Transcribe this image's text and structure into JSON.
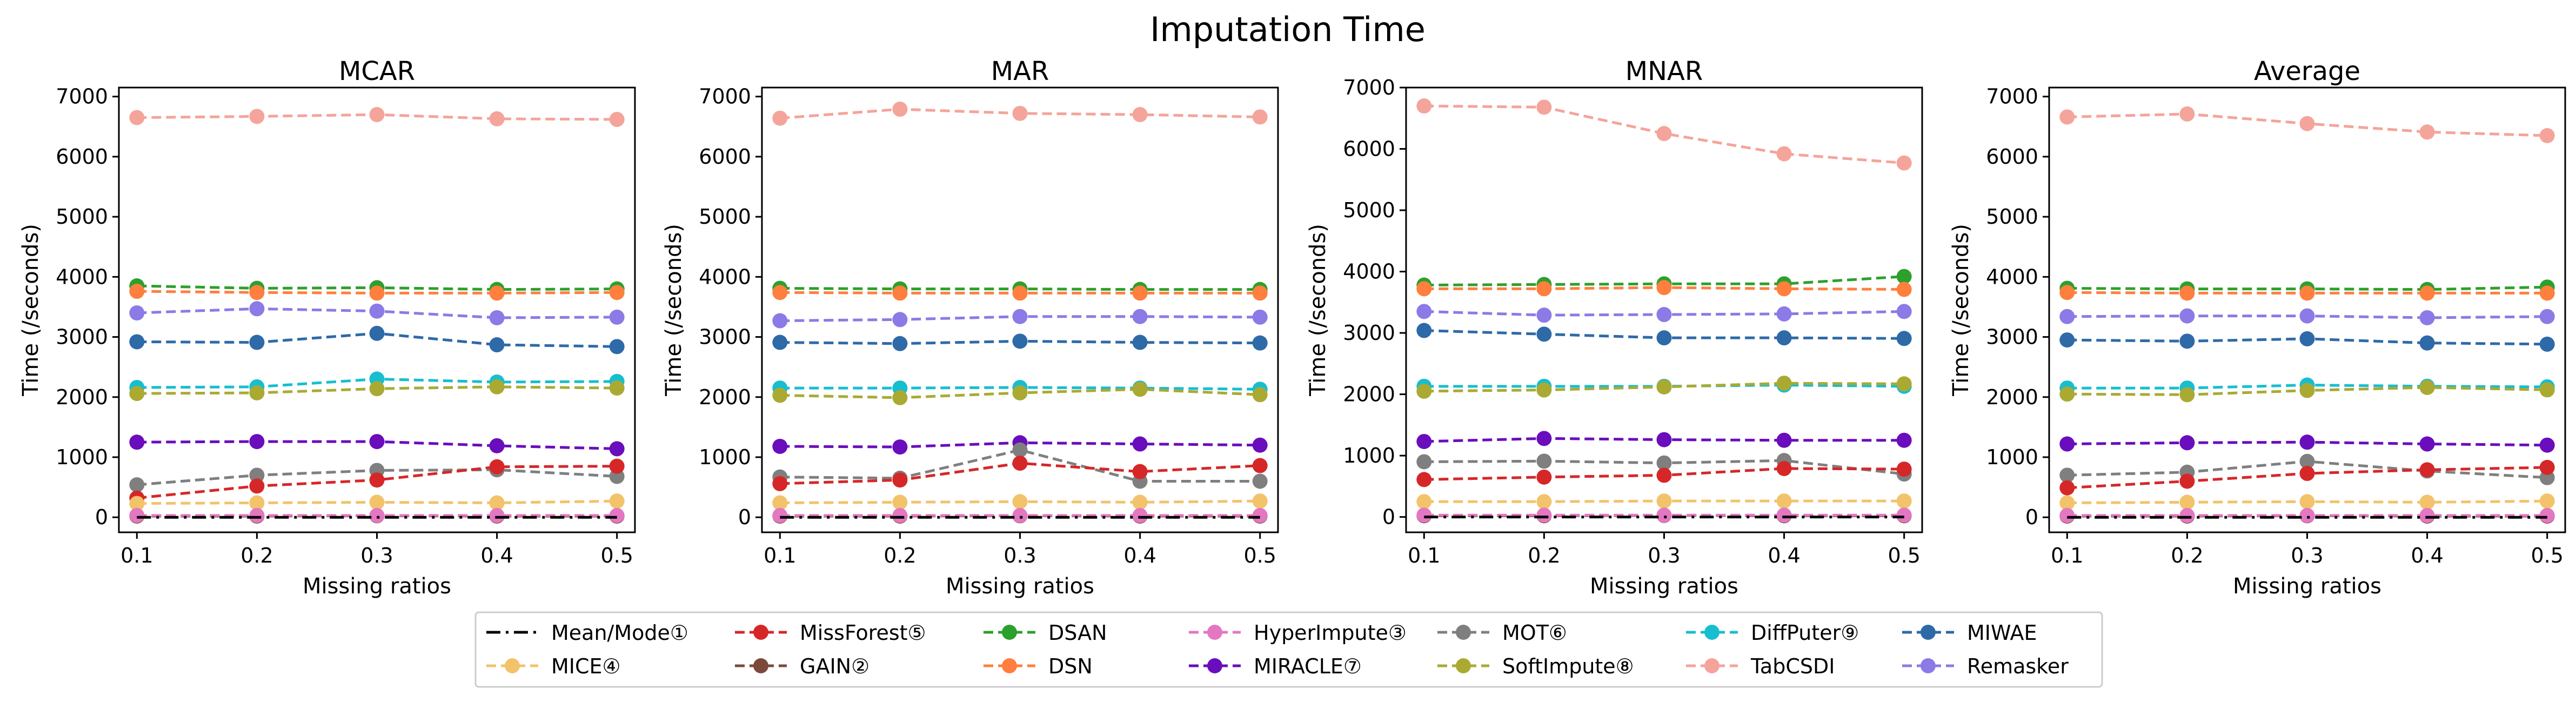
{
  "figure": {
    "title": "Imputation Time"
  },
  "chart_data": [
    {
      "type": "line",
      "title": "MCAR",
      "xlabel": "Missing ratios",
      "ylabel": "Time (/seconds)",
      "x": [
        0.1,
        0.2,
        0.3,
        0.4,
        0.5
      ],
      "xticks": [
        "0.1",
        "0.2",
        "0.3",
        "0.4",
        "0.5"
      ],
      "xlim": [
        0.085,
        0.515
      ],
      "yticks": [
        "0",
        "1000",
        "2000",
        "3000",
        "4000",
        "5000",
        "6000",
        "7000"
      ],
      "ylim": [
        -250,
        7150
      ],
      "grid": false,
      "series": [
        {
          "name": "Mean/Mode①",
          "values": [
            0,
            0,
            0,
            0,
            0
          ]
        },
        {
          "name": "MICE④",
          "values": [
            230,
            240,
            250,
            240,
            270
          ]
        },
        {
          "name": "MissForest⑤",
          "values": [
            320,
            520,
            620,
            840,
            850
          ]
        },
        {
          "name": "GAIN②",
          "values": [
            20,
            20,
            25,
            20,
            20
          ]
        },
        {
          "name": "DSAN",
          "values": [
            3850,
            3810,
            3820,
            3790,
            3800
          ]
        },
        {
          "name": "DSN",
          "values": [
            3760,
            3740,
            3730,
            3730,
            3740
          ]
        },
        {
          "name": "HyperImpute③",
          "values": [
            30,
            30,
            30,
            30,
            30
          ]
        },
        {
          "name": "MIRACLE⑦",
          "values": [
            1250,
            1260,
            1260,
            1190,
            1140
          ]
        },
        {
          "name": "MOT⑥",
          "values": [
            540,
            700,
            780,
            790,
            680
          ]
        },
        {
          "name": "SoftImpute⑧",
          "values": [
            2060,
            2070,
            2140,
            2170,
            2150
          ]
        },
        {
          "name": "DiffPuter⑨",
          "values": [
            2160,
            2170,
            2300,
            2250,
            2260
          ]
        },
        {
          "name": "TabCSDI",
          "values": [
            6650,
            6670,
            6700,
            6630,
            6620
          ]
        },
        {
          "name": "MIWAE",
          "values": [
            2920,
            2910,
            3060,
            2870,
            2840
          ]
        },
        {
          "name": "Remasker",
          "values": [
            3400,
            3470,
            3430,
            3320,
            3330
          ]
        }
      ]
    },
    {
      "type": "line",
      "title": "MAR",
      "xlabel": "Missing ratios",
      "ylabel": "Time (/seconds)",
      "x": [
        0.1,
        0.2,
        0.3,
        0.4,
        0.5
      ],
      "xticks": [
        "0.1",
        "0.2",
        "0.3",
        "0.4",
        "0.5"
      ],
      "xlim": [
        0.085,
        0.515
      ],
      "yticks": [
        "0",
        "1000",
        "2000",
        "3000",
        "4000",
        "5000",
        "6000",
        "7000"
      ],
      "ylim": [
        -250,
        7150
      ],
      "grid": false,
      "series": [
        {
          "name": "Mean/Mode①",
          "values": [
            0,
            0,
            0,
            0,
            0
          ]
        },
        {
          "name": "MICE④",
          "values": [
            240,
            250,
            260,
            250,
            270
          ]
        },
        {
          "name": "MissForest⑤",
          "values": [
            560,
            620,
            900,
            760,
            860
          ]
        },
        {
          "name": "GAIN②",
          "values": [
            20,
            20,
            25,
            20,
            20
          ]
        },
        {
          "name": "DSAN",
          "values": [
            3810,
            3800,
            3800,
            3790,
            3790
          ]
        },
        {
          "name": "DSN",
          "values": [
            3740,
            3730,
            3730,
            3730,
            3730
          ]
        },
        {
          "name": "HyperImpute③",
          "values": [
            30,
            30,
            30,
            30,
            30
          ]
        },
        {
          "name": "MIRACLE⑦",
          "values": [
            1180,
            1170,
            1240,
            1220,
            1200
          ]
        },
        {
          "name": "MOT⑥",
          "values": [
            670,
            650,
            1120,
            600,
            600
          ]
        },
        {
          "name": "SoftImpute⑧",
          "values": [
            2030,
            1990,
            2070,
            2130,
            2040
          ]
        },
        {
          "name": "DiffPuter⑨",
          "values": [
            2150,
            2150,
            2160,
            2150,
            2130
          ]
        },
        {
          "name": "TabCSDI",
          "values": [
            6640,
            6790,
            6720,
            6700,
            6660
          ]
        },
        {
          "name": "MIWAE",
          "values": [
            2910,
            2890,
            2930,
            2910,
            2900
          ]
        },
        {
          "name": "Remasker",
          "values": [
            3270,
            3290,
            3340,
            3340,
            3330
          ]
        }
      ]
    },
    {
      "type": "line",
      "title": "MNAR",
      "xlabel": "Missing ratios",
      "ylabel": "Time (/seconds)",
      "x": [
        0.1,
        0.2,
        0.3,
        0.4,
        0.5
      ],
      "xticks": [
        "0.1",
        "0.2",
        "0.3",
        "0.4",
        "0.5"
      ],
      "xlim": [
        0.085,
        0.515
      ],
      "yticks": [
        "0",
        "1000",
        "2000",
        "3000",
        "4000",
        "5000",
        "6000",
        "7000"
      ],
      "ylim": [
        -250,
        7000
      ],
      "grid": false,
      "series": [
        {
          "name": "Mean/Mode①",
          "values": [
            0,
            0,
            0,
            0,
            0
          ]
        },
        {
          "name": "MICE④",
          "values": [
            250,
            250,
            260,
            260,
            260
          ]
        },
        {
          "name": "MissForest⑤",
          "values": [
            610,
            650,
            680,
            790,
            780
          ]
        },
        {
          "name": "GAIN②",
          "values": [
            20,
            20,
            25,
            20,
            20
          ]
        },
        {
          "name": "DSAN",
          "values": [
            3780,
            3790,
            3800,
            3800,
            3920
          ]
        },
        {
          "name": "DSN",
          "values": [
            3720,
            3720,
            3740,
            3720,
            3710
          ]
        },
        {
          "name": "HyperImpute③",
          "values": [
            30,
            30,
            30,
            30,
            30
          ]
        },
        {
          "name": "MIRACLE⑦",
          "values": [
            1230,
            1280,
            1260,
            1250,
            1250
          ]
        },
        {
          "name": "MOT⑥",
          "values": [
            900,
            910,
            880,
            920,
            700
          ]
        },
        {
          "name": "SoftImpute⑧",
          "values": [
            2050,
            2070,
            2120,
            2180,
            2170
          ]
        },
        {
          "name": "DiffPuter⑨",
          "values": [
            2130,
            2130,
            2130,
            2150,
            2130
          ]
        },
        {
          "name": "TabCSDI",
          "values": [
            6700,
            6680,
            6250,
            5920,
            5770
          ]
        },
        {
          "name": "MIWAE",
          "values": [
            3040,
            2980,
            2920,
            2920,
            2910
          ]
        },
        {
          "name": "Remasker",
          "values": [
            3350,
            3290,
            3300,
            3310,
            3350
          ]
        }
      ]
    },
    {
      "type": "line",
      "title": "Average",
      "xlabel": "Missing ratios",
      "ylabel": "Time (/seconds)",
      "x": [
        0.1,
        0.2,
        0.3,
        0.4,
        0.5
      ],
      "xticks": [
        "0.1",
        "0.2",
        "0.3",
        "0.4",
        "0.5"
      ],
      "xlim": [
        0.085,
        0.515
      ],
      "yticks": [
        "0",
        "1000",
        "2000",
        "3000",
        "4000",
        "5000",
        "6000",
        "7000"
      ],
      "ylim": [
        -250,
        7150
      ],
      "grid": false,
      "series": [
        {
          "name": "Mean/Mode①",
          "values": [
            0,
            0,
            0,
            0,
            0
          ]
        },
        {
          "name": "MICE④",
          "values": [
            240,
            250,
            260,
            250,
            270
          ]
        },
        {
          "name": "MissForest⑤",
          "values": [
            490,
            600,
            730,
            790,
            830
          ]
        },
        {
          "name": "GAIN②",
          "values": [
            20,
            20,
            25,
            20,
            20
          ]
        },
        {
          "name": "DSAN",
          "values": [
            3810,
            3800,
            3800,
            3790,
            3830
          ]
        },
        {
          "name": "DSN",
          "values": [
            3740,
            3730,
            3730,
            3730,
            3730
          ]
        },
        {
          "name": "HyperImpute③",
          "values": [
            30,
            30,
            30,
            30,
            30
          ]
        },
        {
          "name": "MIRACLE⑦",
          "values": [
            1220,
            1240,
            1250,
            1220,
            1200
          ]
        },
        {
          "name": "MOT⑥",
          "values": [
            700,
            750,
            930,
            770,
            660
          ]
        },
        {
          "name": "SoftImpute⑧",
          "values": [
            2050,
            2040,
            2110,
            2160,
            2120
          ]
        },
        {
          "name": "DiffPuter⑨",
          "values": [
            2150,
            2150,
            2200,
            2180,
            2170
          ]
        },
        {
          "name": "TabCSDI",
          "values": [
            6660,
            6710,
            6550,
            6410,
            6350
          ]
        },
        {
          "name": "MIWAE",
          "values": [
            2950,
            2930,
            2970,
            2900,
            2880
          ]
        },
        {
          "name": "Remasker",
          "values": [
            3340,
            3350,
            3350,
            3320,
            3340
          ]
        }
      ]
    }
  ],
  "legend": {
    "placement": "bottom-center",
    "columns": 7,
    "items": [
      {
        "name": "Mean/Mode①",
        "color": "#000000",
        "style": "dashdot",
        "marker": "none"
      },
      {
        "name": "MICE④",
        "color": "#f2c36b",
        "style": "dashed",
        "marker": "circle"
      },
      {
        "name": "MissForest⑤",
        "color": "#d62728",
        "style": "dashed",
        "marker": "circle"
      },
      {
        "name": "GAIN②",
        "color": "#7b4a3a",
        "style": "dashed",
        "marker": "circle"
      },
      {
        "name": "DSAN",
        "color": "#2ca02c",
        "style": "dashed",
        "marker": "circle"
      },
      {
        "name": "DSN",
        "color": "#ff7f3f",
        "style": "dashed",
        "marker": "circle"
      },
      {
        "name": "HyperImpute③",
        "color": "#e377c2",
        "style": "dashed",
        "marker": "circle"
      },
      {
        "name": "MIRACLE⑦",
        "color": "#6a0dbd",
        "style": "dashed",
        "marker": "circle"
      },
      {
        "name": "MOT⑥",
        "color": "#7f7f7f",
        "style": "dashed",
        "marker": "circle"
      },
      {
        "name": "SoftImpute⑧",
        "color": "#aaaa33",
        "style": "dashed",
        "marker": "circle"
      },
      {
        "name": "DiffPuter⑨",
        "color": "#17becf",
        "style": "dashed",
        "marker": "circle"
      },
      {
        "name": "TabCSDI",
        "color": "#f4a49a",
        "style": "dashed",
        "marker": "circle"
      },
      {
        "name": "MIWAE",
        "color": "#2e6aa8",
        "style": "dashed",
        "marker": "circle"
      },
      {
        "name": "Remasker",
        "color": "#8c7ae6",
        "style": "dashed",
        "marker": "circle"
      }
    ]
  }
}
